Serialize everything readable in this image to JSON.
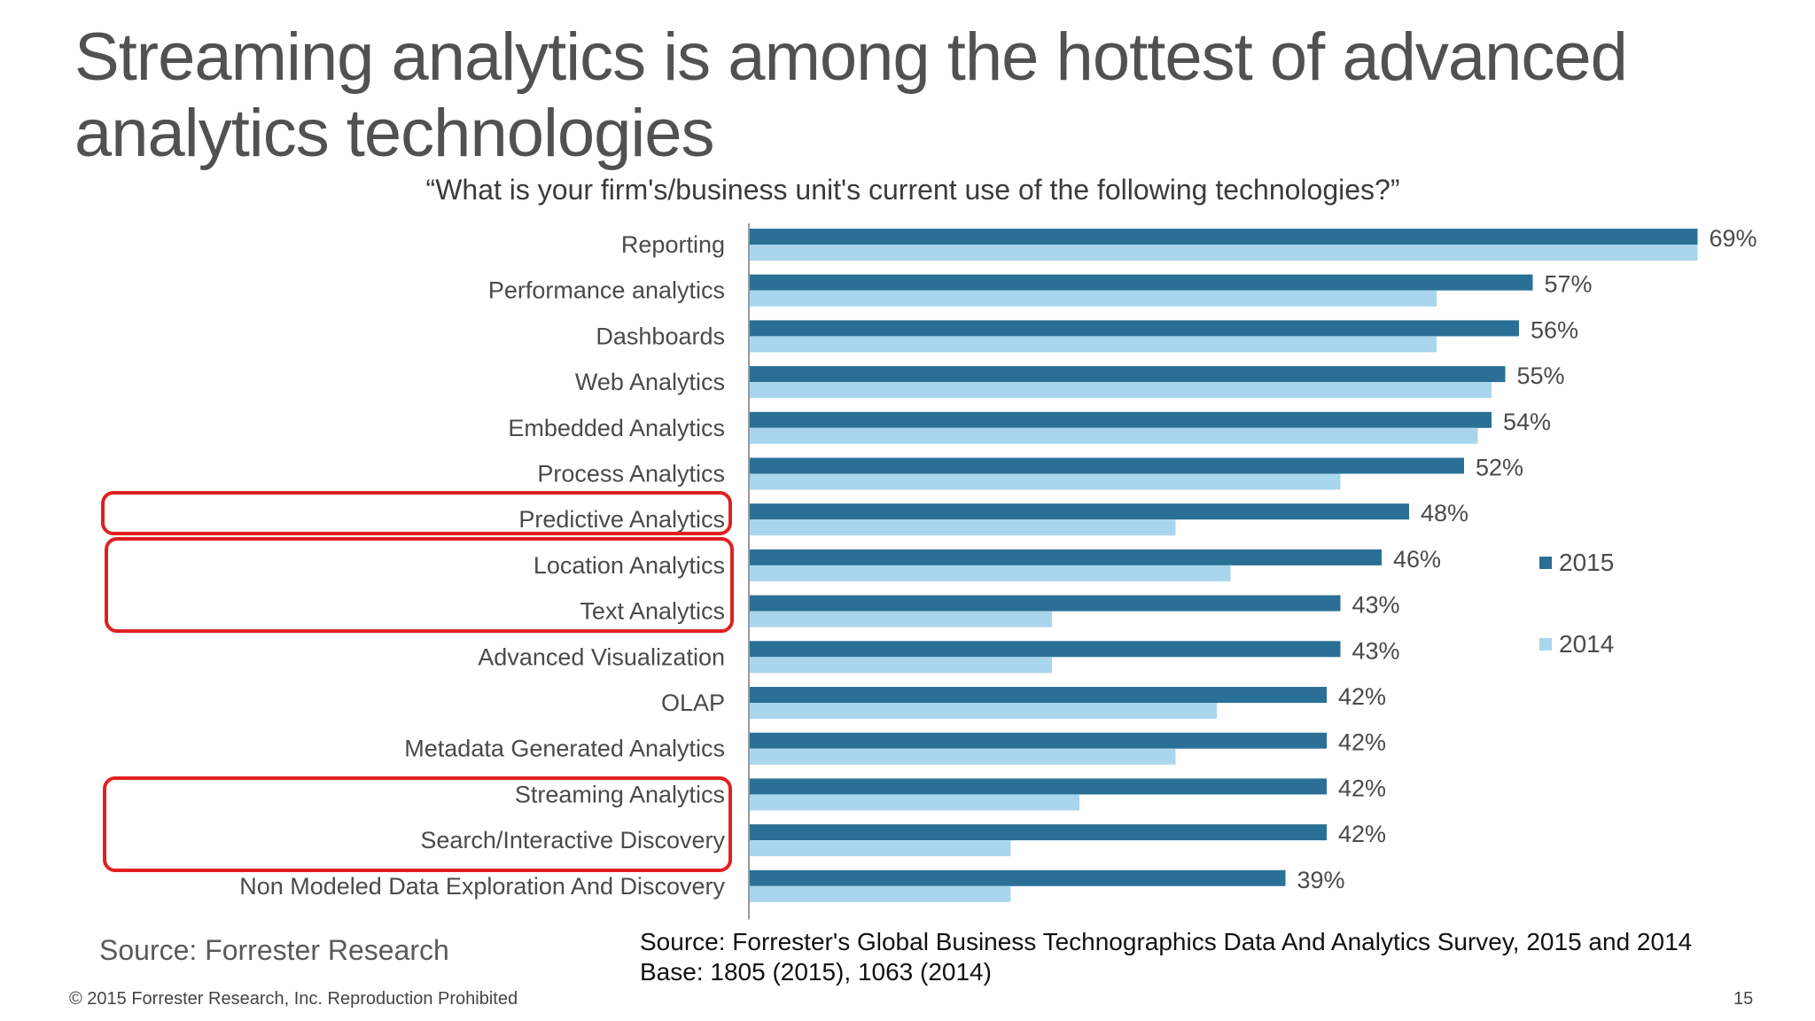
{
  "slide": {
    "title": "Streaming analytics is among the hottest of advanced analytics technologies",
    "subtitle": "“What is your firm's/business unit's current use of the following technologies?”",
    "source_left": "Source: Forrester Research",
    "source_right_line1": "Source: Forrester's Global Business Technographics Data And Analytics Survey, 2015 and 2014",
    "source_right_line2": "Base: 1805 (2015), 1063 (2014)",
    "copyright": "© 2015 Forrester Research, Inc. Reproduction Prohibited",
    "page_number": "15"
  },
  "colors": {
    "series_2015": "#2a7096",
    "series_2014": "#a9d6ec",
    "highlight_box": "#e02020",
    "axis": "#9a9a9a",
    "label_text": "#4a4a4a"
  },
  "chart_data": {
    "type": "bar",
    "orientation": "horizontal",
    "categories": [
      "Reporting",
      "Performance analytics",
      "Dashboards",
      "Web Analytics",
      "Embedded Analytics",
      "Process Analytics",
      "Predictive Analytics",
      "Location Analytics",
      "Text Analytics",
      "Advanced Visualization",
      "OLAP",
      "Metadata Generated Analytics",
      "Streaming Analytics",
      "Search/Interactive Discovery",
      "Non Modeled Data Exploration And Discovery"
    ],
    "series": [
      {
        "name": "2015",
        "values": [
          69,
          57,
          56,
          55,
          54,
          52,
          48,
          46,
          43,
          43,
          42,
          42,
          42,
          42,
          39
        ],
        "data_labels": [
          "69%",
          "57%",
          "56%",
          "55%",
          "54%",
          "52%",
          "48%",
          "46%",
          "43%",
          "43%",
          "42%",
          "42%",
          "42%",
          "42%",
          "39%"
        ]
      },
      {
        "name": "2014",
        "values": [
          69,
          50,
          50,
          54,
          53,
          43,
          31,
          35,
          22,
          22,
          34,
          31,
          24,
          19,
          19
        ]
      }
    ],
    "xlim": [
      0,
      70
    ],
    "legend_position": "right",
    "highlighted_groups": [
      [
        "Predictive Analytics"
      ],
      [
        "Location Analytics",
        "Text Analytics"
      ],
      [
        "Streaming Analytics",
        "Search/Interactive Discovery"
      ]
    ]
  }
}
